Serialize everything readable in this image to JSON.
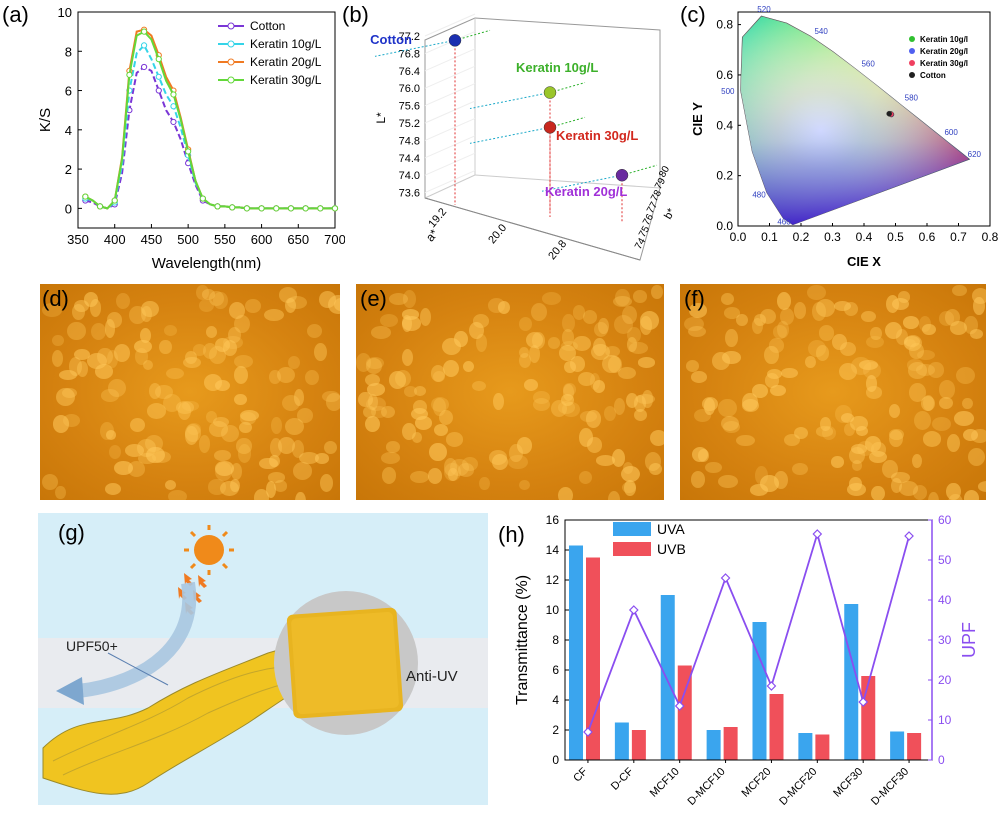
{
  "panel_labels": {
    "a": "(a)",
    "b": "(b)",
    "c": "(c)",
    "d": "(d)",
    "e": "(e)",
    "f": "(f)",
    "g": "(g)",
    "h": "(h)"
  },
  "colors": {
    "cotton": "#7a36d6",
    "keratin10": "#35d4e8",
    "keratin20": "#f07a22",
    "keratin30": "#63d83a",
    "uva": "#3aa5ee",
    "uvb": "#f0505a",
    "upf": "#8a4ef0",
    "fabric": "#e0a21a"
  },
  "scene": {
    "upf_label": "UPF50+",
    "antiuv_label": "Anti-UV",
    "icons": [
      "sun-icon",
      "uv-arrows-icon",
      "reflect-arrow-icon",
      "fabric-swatch-icon"
    ]
  },
  "chart_data": [
    {
      "id": "a",
      "type": "line",
      "xlabel": "Wavelength(nm)",
      "ylabel": "K/S",
      "xlim": [
        350,
        700
      ],
      "ylim": [
        -1,
        10
      ],
      "xticks": [
        350,
        400,
        450,
        500,
        550,
        600,
        650,
        700
      ],
      "yticks": [
        0,
        2,
        4,
        6,
        8,
        10
      ],
      "x": [
        360,
        370,
        380,
        390,
        400,
        410,
        420,
        430,
        440,
        450,
        460,
        470,
        480,
        490,
        500,
        510,
        520,
        530,
        540,
        550,
        560,
        570,
        580,
        590,
        600,
        610,
        620,
        630,
        640,
        650,
        660,
        670,
        680,
        690,
        700
      ],
      "legend_position": "top-right",
      "series": [
        {
          "name": "Cotton",
          "values": [
            0.4,
            0.3,
            0.1,
            0.0,
            0.2,
            1.8,
            5.0,
            6.9,
            7.2,
            7.0,
            6.0,
            5.0,
            4.4,
            3.5,
            2.3,
            1.2,
            0.4,
            0.2,
            0.1,
            0.1,
            0.05,
            0.05,
            0.0,
            0.0,
            0.0,
            0.0,
            0.0,
            0.0,
            0.0,
            0.0,
            0.0,
            0.0,
            0.0,
            0.0,
            0.0
          ]
        },
        {
          "name": "Keratin 10g/L",
          "values": [
            0.5,
            0.4,
            0.1,
            0.0,
            0.3,
            2.2,
            6.0,
            7.9,
            8.3,
            7.6,
            6.7,
            5.8,
            5.2,
            4.1,
            2.7,
            1.3,
            0.5,
            0.2,
            0.1,
            0.1,
            0.05,
            0.05,
            0.0,
            0.0,
            0.0,
            0.0,
            0.0,
            0.0,
            0.0,
            0.0,
            0.0,
            0.0,
            0.0,
            0.0,
            0.0
          ]
        },
        {
          "name": "Keratin 20g/L",
          "values": [
            0.6,
            0.4,
            0.1,
            0.0,
            0.4,
            2.6,
            7.0,
            9.0,
            9.1,
            8.8,
            7.8,
            6.7,
            6.0,
            4.6,
            3.0,
            1.4,
            0.5,
            0.2,
            0.1,
            0.1,
            0.05,
            0.05,
            0.0,
            0.0,
            0.0,
            0.0,
            0.0,
            0.0,
            0.0,
            0.0,
            0.0,
            0.0,
            0.0,
            0.0,
            0.0
          ]
        },
        {
          "name": "Keratin 30g/L",
          "values": [
            0.6,
            0.4,
            0.1,
            0.0,
            0.4,
            2.5,
            6.8,
            8.8,
            9.0,
            8.6,
            7.6,
            6.5,
            5.8,
            4.5,
            2.9,
            1.4,
            0.5,
            0.2,
            0.1,
            0.1,
            0.05,
            0.05,
            0.0,
            0.0,
            0.0,
            0.0,
            0.0,
            0.0,
            0.0,
            0.0,
            0.0,
            0.0,
            0.0,
            0.0,
            0.0
          ]
        }
      ]
    },
    {
      "id": "b",
      "type": "scatter",
      "title": "",
      "zlabel": "L*",
      "xlabel": "a*",
      "ylabel": "b*",
      "zticks": [
        "77.2",
        "76.8",
        "76.4",
        "76.0",
        "75.6",
        "75.2",
        "74.8",
        "74.4",
        "74.0",
        "73.6"
      ],
      "aticks": [
        "19.2",
        "20.0",
        "20.8"
      ],
      "bticks": [
        "74",
        "75",
        "76",
        "77",
        "78",
        "79",
        "80"
      ],
      "points": [
        {
          "name": "Cotton",
          "L": 77.1,
          "a": 19.4,
          "b": 74.5
        },
        {
          "name": "Keratin 10g/L",
          "L": 75.9,
          "a": 20.4,
          "b": 77.2
        },
        {
          "name": "Keratin 30g/L",
          "L": 75.1,
          "a": 20.4,
          "b": 78.0
        },
        {
          "name": "Keratin 20g/L",
          "L": 74.0,
          "a": 20.8,
          "b": 78.8
        }
      ]
    },
    {
      "id": "c",
      "type": "scatter",
      "xlabel": "CIE X",
      "ylabel": "CIE Y",
      "xlim": [
        0,
        0.8
      ],
      "ylim": [
        0,
        0.85
      ],
      "xticks": [
        "0.0",
        "0.1",
        "0.2",
        "0.3",
        "0.4",
        "0.5",
        "0.6",
        "0.7",
        "0.8"
      ],
      "yticks": [
        "0.0",
        "0.2",
        "0.4",
        "0.6",
        "0.8"
      ],
      "wavelength_ticks": [
        "460",
        "480",
        "500",
        "520",
        "540",
        "560",
        "580",
        "600",
        "620"
      ],
      "legend_position": "top-right",
      "series": [
        {
          "name": "Keratin 10g/l",
          "x": 0.485,
          "y": 0.445
        },
        {
          "name": "Keratin 20g/l",
          "x": 0.487,
          "y": 0.443
        },
        {
          "name": "Keratin 30g/l",
          "x": 0.486,
          "y": 0.444
        },
        {
          "name": "Cotton",
          "x": 0.48,
          "y": 0.446
        }
      ]
    },
    {
      "id": "h",
      "type": "bar",
      "categories": [
        "CF",
        "D-CF",
        "MCF10",
        "D-MCF10",
        "MCF20",
        "D-MCF20",
        "MCF30",
        "D-MCF30"
      ],
      "ylabel": "Transmittance (%)",
      "y2label": "UPF",
      "ylim": [
        0,
        16
      ],
      "y2lim": [
        0,
        60
      ],
      "yticks": [
        0,
        2,
        4,
        6,
        8,
        10,
        12,
        14,
        16
      ],
      "y2ticks": [
        0,
        10,
        20,
        30,
        40,
        50,
        60
      ],
      "legend_position": "top-left",
      "series": [
        {
          "name": "UVA",
          "values": [
            14.3,
            2.5,
            11.0,
            2.0,
            9.2,
            1.8,
            10.4,
            1.9
          ]
        },
        {
          "name": "UVB",
          "values": [
            13.5,
            2.0,
            6.3,
            2.2,
            4.4,
            1.7,
            5.6,
            1.8
          ]
        },
        {
          "name": "UPF",
          "type": "line",
          "values": [
            7,
            37.5,
            13.5,
            45.5,
            18.5,
            56.5,
            14.5,
            56
          ]
        }
      ]
    }
  ]
}
